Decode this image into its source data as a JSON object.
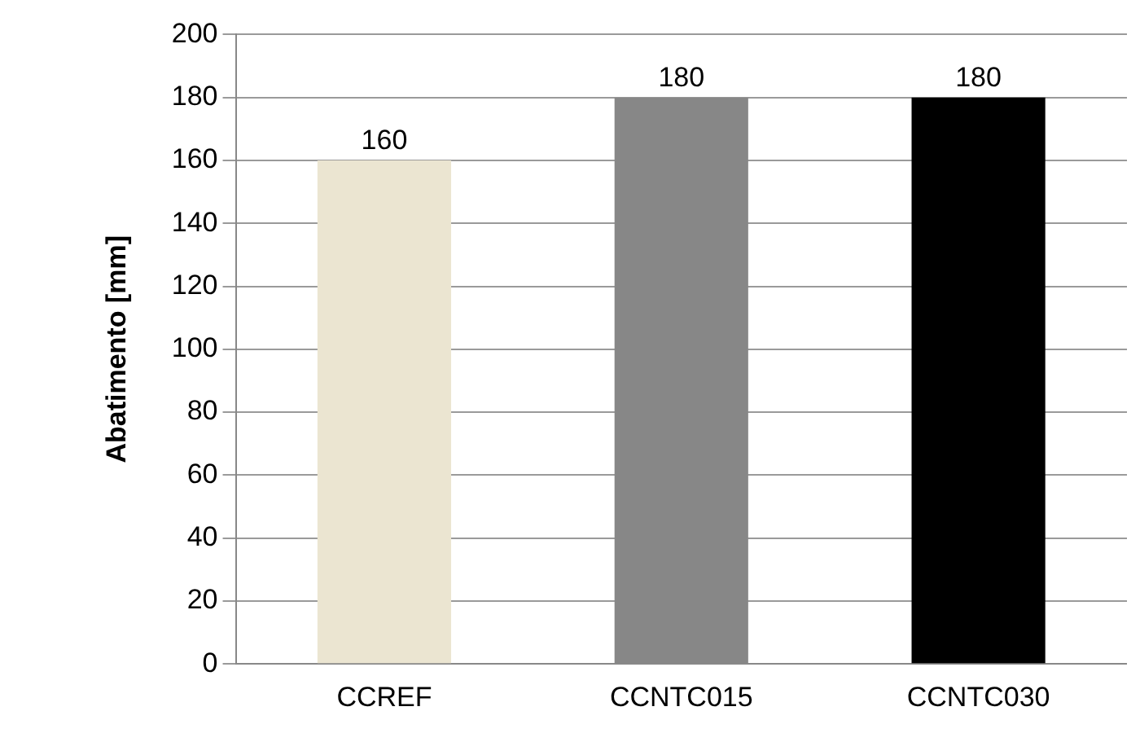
{
  "chart_data": {
    "type": "bar",
    "ylabel": "Abatimento [mm]",
    "categories": [
      "CCREF",
      "CCNTC015",
      "CCNTC030"
    ],
    "values": [
      160,
      180,
      180
    ],
    "colors": [
      "#ebe5d1",
      "#878787",
      "#000000"
    ],
    "ylim": [
      0,
      200
    ],
    "yticks": [
      0,
      20,
      40,
      60,
      80,
      100,
      120,
      140,
      160,
      180,
      200
    ],
    "grid": "y",
    "data_labels": true
  }
}
